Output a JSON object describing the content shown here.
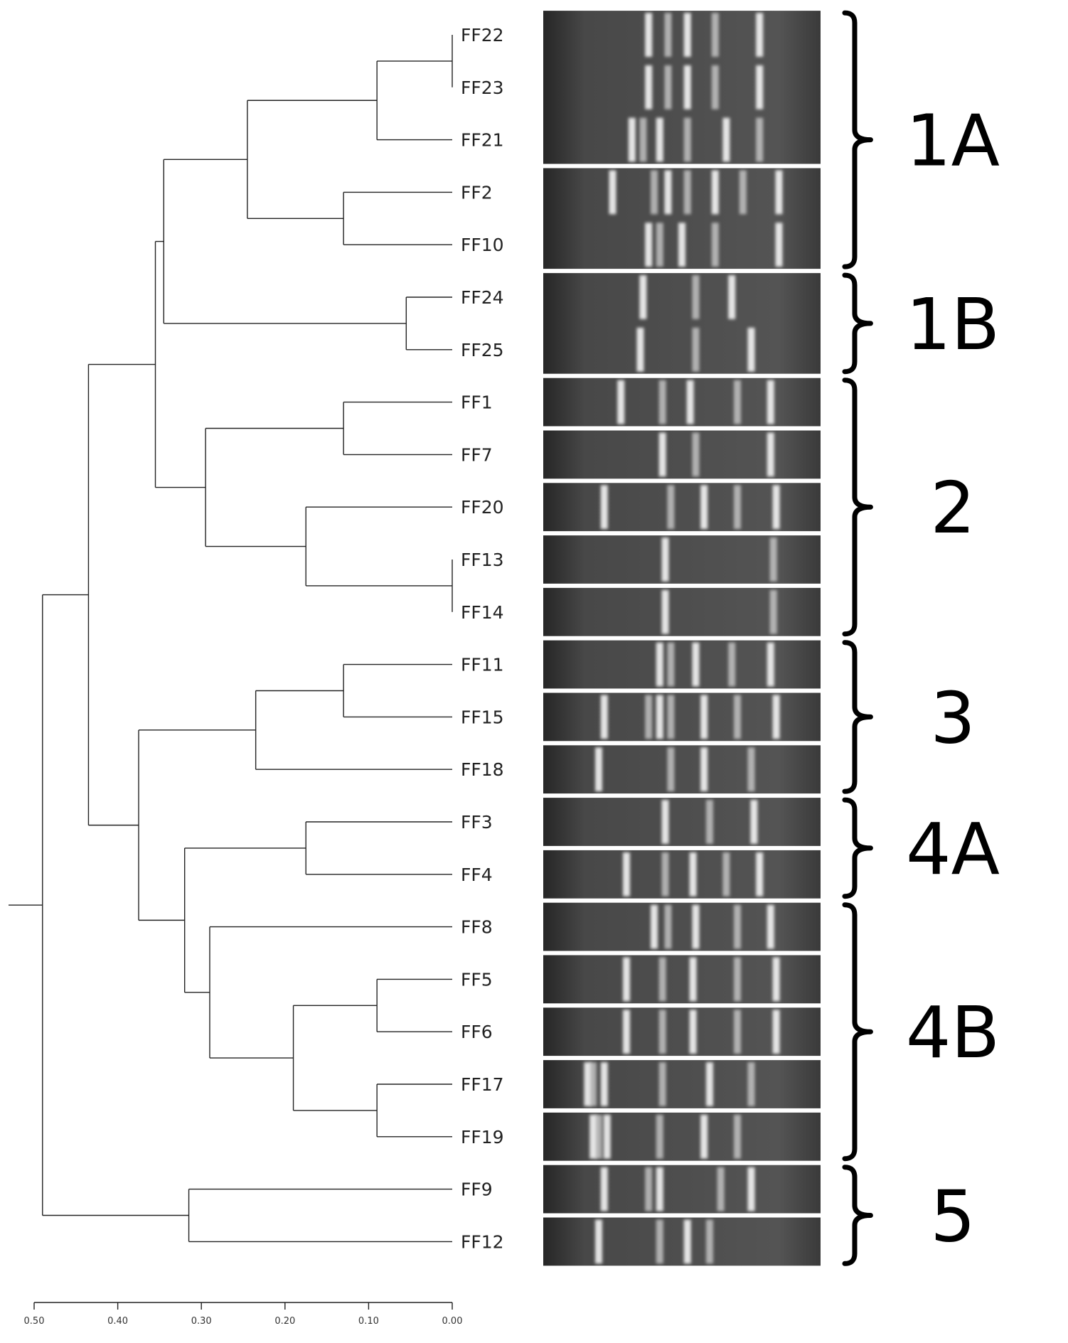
{
  "figure": {
    "leaves": [
      "FF22",
      "FF23",
      "FF21",
      "FF2",
      "FF10",
      "FF24",
      "FF25",
      "FF1",
      "FF7",
      "FF20",
      "FF13",
      "FF14",
      "FF11",
      "FF15",
      "FF18",
      "FF3",
      "FF4",
      "FF8",
      "FF5",
      "FF6",
      "FF17",
      "FF19",
      "FF9",
      "FF12"
    ],
    "groups": [
      {
        "label": "1A",
        "first": 0,
        "last": 4
      },
      {
        "label": "1B",
        "first": 5,
        "last": 6
      },
      {
        "label": "2",
        "first": 7,
        "last": 11
      },
      {
        "label": "3",
        "first": 12,
        "last": 14
      },
      {
        "label": "4A",
        "first": 15,
        "last": 16
      },
      {
        "label": "4B",
        "first": 17,
        "last": 21
      },
      {
        "label": "5",
        "first": 22,
        "last": 23
      }
    ],
    "gel_blocks": [
      [
        0,
        2
      ],
      [
        3,
        4
      ],
      [
        5,
        6
      ],
      [
        7,
        7
      ],
      [
        8,
        8
      ],
      [
        9,
        9
      ],
      [
        10,
        10
      ],
      [
        11,
        11
      ],
      [
        12,
        12
      ],
      [
        13,
        13
      ],
      [
        14,
        14
      ],
      [
        15,
        15
      ],
      [
        16,
        16
      ],
      [
        17,
        17
      ],
      [
        18,
        18
      ],
      [
        19,
        19
      ],
      [
        20,
        20
      ],
      [
        21,
        21
      ],
      [
        22,
        22
      ],
      [
        23,
        23
      ]
    ],
    "gel_bands": [
      [
        0.38,
        0.45,
        0.52,
        0.62,
        0.78
      ],
      [
        0.38,
        0.45,
        0.52,
        0.62,
        0.78
      ],
      [
        0.32,
        0.36,
        0.42,
        0.52,
        0.66,
        0.78
      ],
      [
        0.25,
        0.4,
        0.45,
        0.52,
        0.62,
        0.72,
        0.85
      ],
      [
        0.38,
        0.42,
        0.5,
        0.62,
        0.85
      ],
      [
        0.36,
        0.55,
        0.68
      ],
      [
        0.35,
        0.55,
        0.75
      ],
      [
        0.28,
        0.43,
        0.53,
        0.7,
        0.82
      ],
      [
        0.43,
        0.55,
        0.82
      ],
      [
        0.22,
        0.46,
        0.58,
        0.7,
        0.84
      ],
      [
        0.44,
        0.83
      ],
      [
        0.44,
        0.83
      ],
      [
        0.42,
        0.46,
        0.55,
        0.68,
        0.82
      ],
      [
        0.22,
        0.38,
        0.42,
        0.46,
        0.58,
        0.7,
        0.84
      ],
      [
        0.2,
        0.46,
        0.58,
        0.75
      ],
      [
        0.44,
        0.6,
        0.76
      ],
      [
        0.3,
        0.44,
        0.54,
        0.66,
        0.78
      ],
      [
        0.4,
        0.45,
        0.55,
        0.7,
        0.82
      ],
      [
        0.3,
        0.43,
        0.54,
        0.7,
        0.84
      ],
      [
        0.3,
        0.43,
        0.54,
        0.7,
        0.84
      ],
      [
        0.16,
        0.18,
        0.22,
        0.43,
        0.6,
        0.75
      ],
      [
        0.18,
        0.2,
        0.23,
        0.42,
        0.58,
        0.7
      ],
      [
        0.22,
        0.38,
        0.42,
        0.64,
        0.75
      ],
      [
        0.2,
        0.42,
        0.52,
        0.6
      ]
    ],
    "scale": {
      "min": 0.0,
      "max": 0.5,
      "tick_values": [
        0.5,
        0.4,
        0.3,
        0.2,
        0.1,
        0.0
      ],
      "tick_labels": [
        "0.50",
        "0.40",
        "0.30",
        "0.20",
        "0.10",
        "0.00"
      ]
    },
    "colors": {
      "line": "#222222",
      "gel_bg": "#484848",
      "gel_dark": "#262626",
      "band": "#f2f2f2"
    }
  },
  "tree": {
    "h": 0.49,
    "c": [
      {
        "h": 0.435,
        "c": [
          {
            "h": 0.355,
            "c": [
              {
                "h": 0.345,
                "c": [
                  {
                    "h": 0.245,
                    "c": [
                      {
                        "h": 0.09,
                        "c": [
                          {
                            "h": 0.0,
                            "c": [
                              "FF22",
                              "FF23"
                            ]
                          },
                          "FF21"
                        ]
                      },
                      {
                        "h": 0.13,
                        "c": [
                          "FF2",
                          "FF10"
                        ]
                      }
                    ]
                  },
                  {
                    "h": 0.055,
                    "c": [
                      "FF24",
                      "FF25"
                    ]
                  }
                ]
              },
              {
                "h": 0.295,
                "c": [
                  {
                    "h": 0.13,
                    "c": [
                      "FF1",
                      "FF7"
                    ]
                  },
                  {
                    "h": 0.175,
                    "c": [
                      "FF20",
                      {
                        "h": 0.0,
                        "c": [
                          "FF13",
                          "FF14"
                        ]
                      }
                    ]
                  }
                ]
              }
            ]
          },
          {
            "h": 0.375,
            "c": [
              {
                "h": 0.235,
                "c": [
                  {
                    "h": 0.13,
                    "c": [
                      "FF11",
                      "FF15"
                    ]
                  },
                  "FF18"
                ]
              },
              {
                "h": 0.32,
                "c": [
                  {
                    "h": 0.175,
                    "c": [
                      "FF3",
                      "FF4"
                    ]
                  },
                  {
                    "h": 0.29,
                    "c": [
                      "FF8",
                      {
                        "h": 0.19,
                        "c": [
                          {
                            "h": 0.09,
                            "c": [
                              "FF5",
                              "FF6"
                            ]
                          },
                          {
                            "h": 0.09,
                            "c": [
                              "FF17",
                              "FF19"
                            ]
                          }
                        ]
                      }
                    ]
                  }
                ]
              }
            ]
          }
        ]
      },
      {
        "h": 0.315,
        "c": [
          "FF9",
          "FF12"
        ]
      }
    ]
  }
}
